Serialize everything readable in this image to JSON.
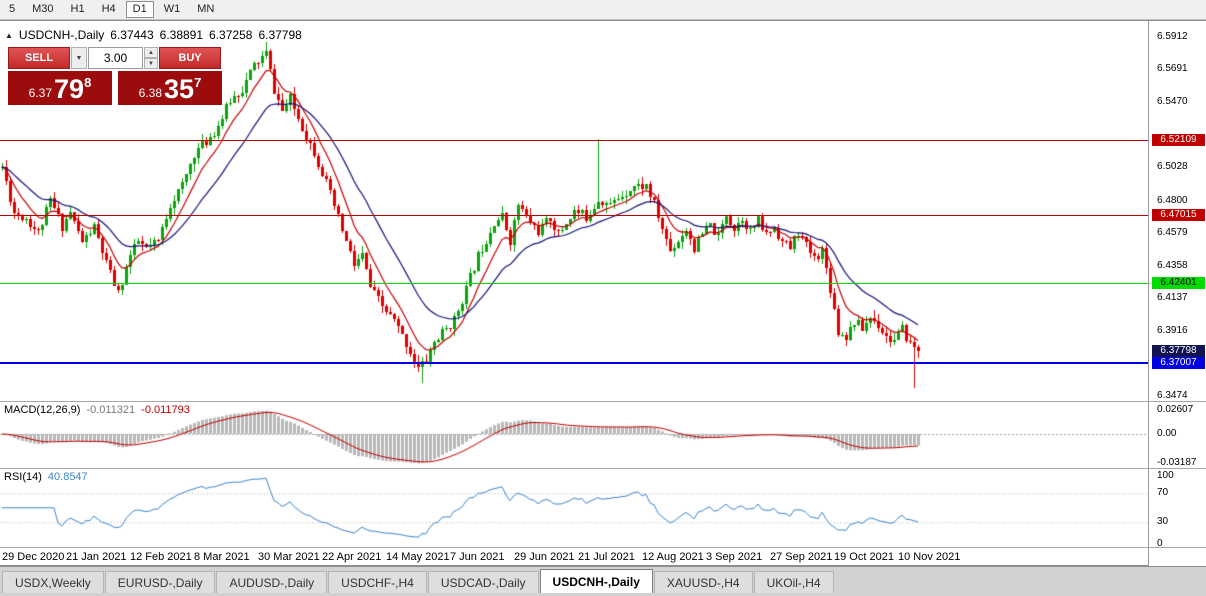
{
  "toolbar": {
    "timeframes": [
      {
        "label": "5",
        "active": false
      },
      {
        "label": "M30",
        "active": false
      },
      {
        "label": "H1",
        "active": false
      },
      {
        "label": "H4",
        "active": false
      },
      {
        "label": "D1",
        "active": true
      },
      {
        "label": "W1",
        "active": false
      },
      {
        "label": "MN",
        "active": false
      }
    ]
  },
  "icons": {
    "collapse": "▲",
    "dropdown_arrow": "▼",
    "spin_up": "▲",
    "spin_down": "▼"
  },
  "chart": {
    "header": {
      "symbol": "USDCNH-,Daily",
      "open": "6.37443",
      "high": "6.38891",
      "low": "6.37258",
      "close": "6.37798"
    },
    "trade_panel": {
      "sell_label": "SELL",
      "buy_label": "BUY",
      "lot_size": "3.00",
      "sell_price_small": "6.37",
      "sell_price_big": "79",
      "sell_price_sup": "8",
      "buy_price_small": "6.38",
      "buy_price_big": "35",
      "buy_price_sup": "7"
    },
    "price_axis_labels": [
      "6.5912",
      "6.5691",
      "6.5470",
      "6.5028",
      "6.4800",
      "6.4579",
      "6.4358",
      "6.4137",
      "6.3916",
      "6.3474"
    ],
    "hlines": [
      {
        "price": 6.52109,
        "label": "6.52109",
        "color": "#c00000",
        "text_color": "#ffffff",
        "thickness": 1
      },
      {
        "price": 6.47015,
        "label": "6.47015",
        "color": "#c00000",
        "text_color": "#ffffff",
        "thickness": 1
      },
      {
        "price": 6.42401,
        "label": "6.42401",
        "color": "#00dc00",
        "text_color": "#000000",
        "thickness": 1
      },
      {
        "price": 6.37007,
        "label": "6.37007",
        "color": "#0000e0",
        "text_color": "#ffffff",
        "thickness": 2
      }
    ],
    "bid_badge": {
      "price": 6.37798,
      "label": "6.37798",
      "color": "#12124e"
    },
    "date_labels": [
      "29 Dec 2020",
      "21 Jan 2021",
      "12 Feb 2021",
      "8 Mar 2021",
      "30 Mar 2021",
      "22 Apr 2021",
      "14 May 2021",
      "7 Jun 2021",
      "29 Jun 2021",
      "21 Jul 2021",
      "12 Aug 2021",
      "3 Sep 2021",
      "27 Sep 2021",
      "19 Oct 2021",
      "10 Nov 2021"
    ]
  },
  "macd": {
    "title": "MACD(12,26,9)",
    "value_main": "-0.011321",
    "value_signal": "-0.011793",
    "axis_labels": [
      "0.02607",
      "0.00",
      "-0.03187"
    ]
  },
  "rsi": {
    "title": "RSI(14)",
    "value": "40.8547",
    "axis_labels": [
      "100",
      "70",
      "30",
      "0"
    ]
  },
  "tabs": [
    {
      "label": "USDX,Weekly",
      "active": false
    },
    {
      "label": "EURUSD-,Daily",
      "active": false
    },
    {
      "label": "AUDUSD-,Daily",
      "active": false
    },
    {
      "label": "USDCHF-,H4",
      "active": false
    },
    {
      "label": "USDCAD-,Daily",
      "active": false
    },
    {
      "label": "USDCNH-,Daily",
      "active": true
    },
    {
      "label": "XAUUSD-,H4",
      "active": false
    },
    {
      "label": "UKOil-,H4",
      "active": false
    }
  ],
  "chart_data": {
    "type": "candlestick",
    "symbol": "USDCNH-,Daily",
    "ohlc_display": {
      "open": 6.37443,
      "high": 6.38891,
      "low": 6.37258,
      "close": 6.37798
    },
    "visible_price_range": [
      6.344,
      6.602
    ],
    "key_levels": [
      6.52109,
      6.47015,
      6.42401,
      6.37007
    ],
    "bid": 6.37798,
    "ask": 6.38357,
    "candle_count": 230,
    "seed": 11,
    "noise": 0.007,
    "wick": 0.005,
    "last_close": 6.37798,
    "price_anchors": [
      [
        0,
        6.503
      ],
      [
        3,
        6.472
      ],
      [
        6,
        6.468
      ],
      [
        9,
        6.458
      ],
      [
        12,
        6.48
      ],
      [
        15,
        6.463
      ],
      [
        17,
        6.472
      ],
      [
        20,
        6.452
      ],
      [
        23,
        6.462
      ],
      [
        26,
        6.437
      ],
      [
        29,
        6.417
      ],
      [
        32,
        6.443
      ],
      [
        34,
        6.452
      ],
      [
        36,
        6.447
      ],
      [
        39,
        6.452
      ],
      [
        42,
        6.478
      ],
      [
        45,
        6.49
      ],
      [
        48,
        6.512
      ],
      [
        51,
        6.52
      ],
      [
        54,
        6.531
      ],
      [
        57,
        6.548
      ],
      [
        60,
        6.556
      ],
      [
        63,
        6.572
      ],
      [
        66,
        6.58
      ],
      [
        68,
        6.555
      ],
      [
        70,
        6.541
      ],
      [
        72,
        6.549
      ],
      [
        75,
        6.53
      ],
      [
        78,
        6.513
      ],
      [
        81,
        6.492
      ],
      [
        84,
        6.468
      ],
      [
        86,
        6.452
      ],
      [
        88,
        6.436
      ],
      [
        90,
        6.443
      ],
      [
        92,
        6.421
      ],
      [
        95,
        6.408
      ],
      [
        98,
        6.398
      ],
      [
        101,
        6.383
      ],
      [
        104,
        6.366
      ],
      [
        106,
        6.372
      ],
      [
        108,
        6.384
      ],
      [
        110,
        6.39
      ],
      [
        113,
        6.399
      ],
      [
        116,
        6.42
      ],
      [
        119,
        6.443
      ],
      [
        121,
        6.454
      ],
      [
        123,
        6.466
      ],
      [
        125,
        6.469
      ],
      [
        127,
        6.453
      ],
      [
        129,
        6.477
      ],
      [
        131,
        6.469
      ],
      [
        134,
        6.459
      ],
      [
        137,
        6.468
      ],
      [
        139,
        6.457
      ],
      [
        141,
        6.465
      ],
      [
        143,
        6.473
      ],
      [
        146,
        6.469
      ],
      [
        149,
        6.481
      ],
      [
        152,
        6.477
      ],
      [
        155,
        6.484
      ],
      [
        158,
        6.49
      ],
      [
        161,
        6.49
      ],
      [
        163,
        6.477
      ],
      [
        165,
        6.461
      ],
      [
        167,
        6.446
      ],
      [
        169,
        6.453
      ],
      [
        171,
        6.461
      ],
      [
        173,
        6.448
      ],
      [
        175,
        6.457
      ],
      [
        177,
        6.463
      ],
      [
        179,
        6.455
      ],
      [
        181,
        6.471
      ],
      [
        183,
        6.461
      ],
      [
        185,
        6.469
      ],
      [
        187,
        6.459
      ],
      [
        189,
        6.466
      ],
      [
        191,
        6.457
      ],
      [
        193,
        6.462
      ],
      [
        195,
        6.452
      ],
      [
        197,
        6.448
      ],
      [
        199,
        6.459
      ],
      [
        201,
        6.449
      ],
      [
        203,
        6.441
      ],
      [
        205,
        6.447
      ],
      [
        207,
        6.421
      ],
      [
        209,
        6.391
      ],
      [
        211,
        6.388
      ],
      [
        213,
        6.398
      ],
      [
        215,
        6.393
      ],
      [
        217,
        6.401
      ],
      [
        219,
        6.396
      ],
      [
        221,
        6.388
      ],
      [
        223,
        6.385
      ],
      [
        225,
        6.392
      ],
      [
        227,
        6.383
      ],
      [
        229,
        6.378
      ]
    ],
    "spikes": [
      {
        "i": 66,
        "h": 6.588
      },
      {
        "i": 105,
        "l": 6.356
      },
      {
        "i": 149,
        "h": 6.522
      },
      {
        "i": 228,
        "l": 6.353
      }
    ],
    "moving_averages": [
      {
        "period": 8,
        "color": "#c80000"
      },
      {
        "period": 21,
        "color": "#14147a"
      }
    ],
    "macd": {
      "fast": 12,
      "slow": 26,
      "signal": 9,
      "hist_color": "#b8b8b8",
      "signal_color": "#c00000"
    },
    "rsi": {
      "period": 14,
      "color": "#3d85c8",
      "levels": [
        70,
        30
      ]
    },
    "colors": {
      "bull": "#0fa00f",
      "bear": "#dd0000"
    }
  }
}
